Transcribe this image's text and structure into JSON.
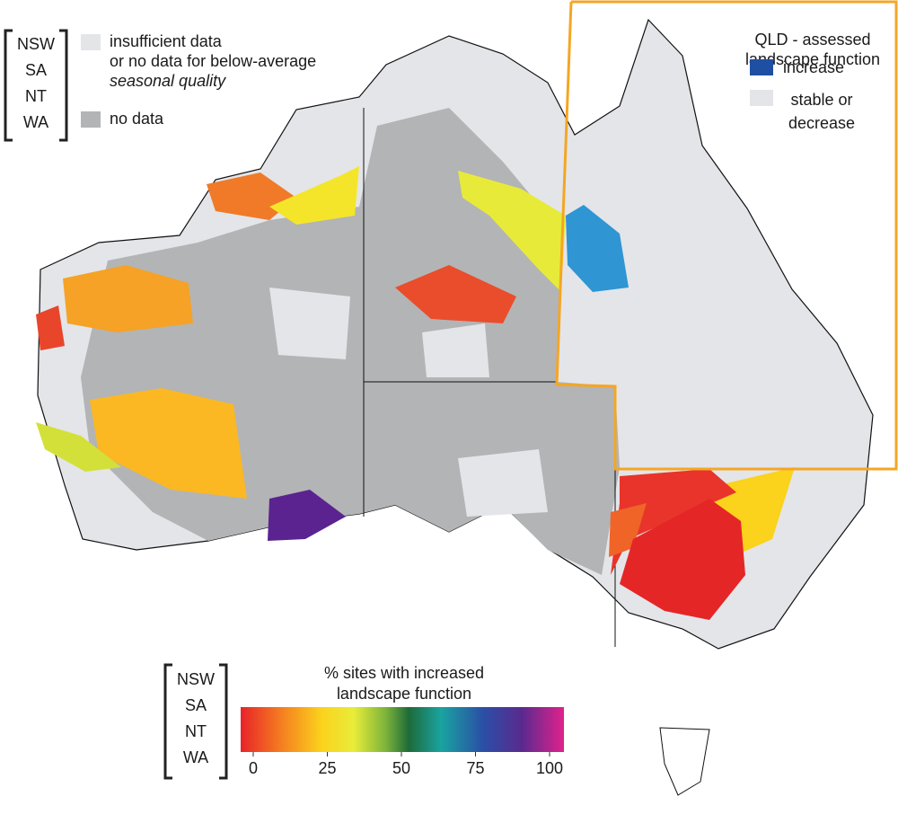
{
  "top_legend": {
    "states": [
      "NSW",
      "SA",
      "NT",
      "WA"
    ],
    "insufficient": [
      "insufficient data",
      "or no data for below-average"
    ],
    "insufficient_italic": "seasonal quality",
    "no_data": "no data"
  },
  "qld_legend": {
    "title": [
      "QLD - assessed",
      "landscape function"
    ],
    "increase": "increase",
    "stable": [
      "stable or",
      "decrease"
    ]
  },
  "colorbar": {
    "states": [
      "NSW",
      "SA",
      "NT",
      "WA"
    ],
    "title": [
      "% sites with increased",
      "landscape function"
    ],
    "range": [
      0,
      100
    ],
    "ticks": [
      0,
      25,
      50,
      75,
      100
    ]
  }
}
